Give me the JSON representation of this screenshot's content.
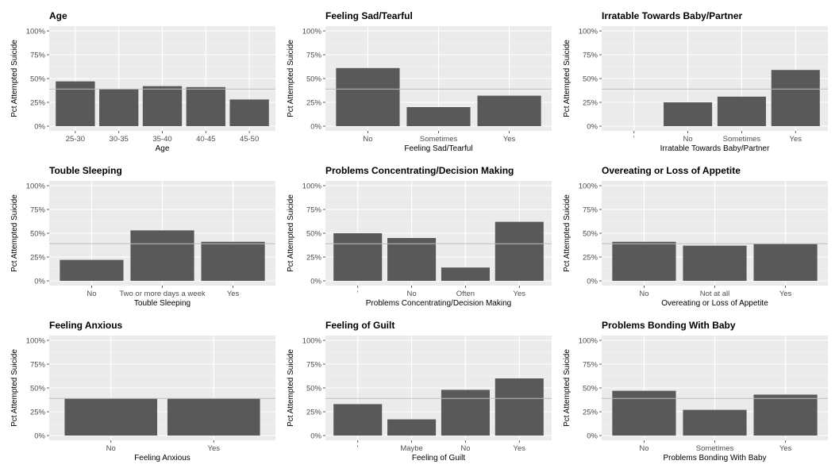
{
  "figure": {
    "ylabel": "Pct Attempted Suicide",
    "reference_line": 0.39
  },
  "chart_data": [
    {
      "type": "bar",
      "title": "Age",
      "xlabel": "Age",
      "ylabel": "Pct Attempted Suicide",
      "ylim": [
        0,
        1
      ],
      "yticks": [
        "0%",
        "25%",
        "50%",
        "75%",
        "100%"
      ],
      "grid": true,
      "categories": [
        "25-30",
        "30-35",
        "35-40",
        "40-45",
        "45-50"
      ],
      "values": [
        0.47,
        0.39,
        0.42,
        0.41,
        0.28
      ],
      "reference_line": 0.39,
      "bar_color": "#595959"
    },
    {
      "type": "bar",
      "title": "Feeling Sad/Tearful",
      "xlabel": "Feeling Sad/Tearful",
      "ylabel": "Pct Attempted Suicide",
      "ylim": [
        0,
        1
      ],
      "yticks": [
        "0%",
        "25%",
        "50%",
        "75%",
        "100%"
      ],
      "grid": true,
      "categories": [
        "No",
        "Sometimes",
        "Yes"
      ],
      "values": [
        0.61,
        0.2,
        0.32
      ],
      "reference_line": 0.39,
      "bar_color": "#595959"
    },
    {
      "type": "bar",
      "title": "Irratable Towards Baby/Partner",
      "xlabel": "Irratable Towards Baby/Partner",
      "ylabel": "Pct Attempted Suicide",
      "ylim": [
        0,
        1
      ],
      "yticks": [
        "0%",
        "25%",
        "50%",
        "75%",
        "100%"
      ],
      "grid": true,
      "categories": [
        "'",
        "No",
        "Sometimes",
        "Yes"
      ],
      "values": [
        0,
        0.25,
        0.31,
        0.59
      ],
      "reference_line": 0.39,
      "bar_color": "#595959"
    },
    {
      "type": "bar",
      "title": "Touble Sleeping",
      "xlabel": "Touble Sleeping",
      "ylabel": "Pct Attempted Suicide",
      "ylim": [
        0,
        1
      ],
      "yticks": [
        "0%",
        "25%",
        "50%",
        "75%",
        "100%"
      ],
      "grid": true,
      "categories": [
        "No",
        "Two or more days a week",
        "Yes"
      ],
      "values": [
        0.22,
        0.53,
        0.41
      ],
      "reference_line": 0.39,
      "bar_color": "#595959"
    },
    {
      "type": "bar",
      "title": "Problems Concentrating/Decision Making",
      "xlabel": "Problems Concentrating/Decision Making",
      "ylabel": "Pct Attempted Suicide",
      "ylim": [
        0,
        1
      ],
      "yticks": [
        "0%",
        "25%",
        "50%",
        "75%",
        "100%"
      ],
      "grid": true,
      "categories": [
        "'",
        "No",
        "Often",
        "Yes"
      ],
      "values": [
        0.5,
        0.45,
        0.14,
        0.62
      ],
      "reference_line": 0.39,
      "bar_color": "#595959"
    },
    {
      "type": "bar",
      "title": "Overeating or Loss of Appetite",
      "xlabel": "Overeating or Loss of Appetite",
      "ylabel": "Pct Attempted Suicide",
      "ylim": [
        0,
        1
      ],
      "yticks": [
        "0%",
        "25%",
        "50%",
        "75%",
        "100%"
      ],
      "grid": true,
      "categories": [
        "No",
        "Not at all",
        "Yes"
      ],
      "values": [
        0.41,
        0.37,
        0.39
      ],
      "reference_line": 0.39,
      "bar_color": "#595959"
    },
    {
      "type": "bar",
      "title": "Feeling Anxious",
      "xlabel": "Feeling Anxious",
      "ylabel": "Pct Attempted Suicide",
      "ylim": [
        0,
        1
      ],
      "yticks": [
        "0%",
        "25%",
        "50%",
        "75%",
        "100%"
      ],
      "grid": true,
      "categories": [
        "No",
        "Yes"
      ],
      "values": [
        0.39,
        0.39
      ],
      "reference_line": 0.39,
      "bar_color": "#595959"
    },
    {
      "type": "bar",
      "title": "Feeling of Guilt",
      "xlabel": "Feeling of Guilt",
      "ylabel": "Pct Attempted Suicide",
      "ylim": [
        0,
        1
      ],
      "yticks": [
        "0%",
        "25%",
        "50%",
        "75%",
        "100%"
      ],
      "grid": true,
      "categories": [
        "'",
        "Maybe",
        "No",
        "Yes"
      ],
      "values": [
        0.33,
        0.17,
        0.48,
        0.6
      ],
      "reference_line": 0.39,
      "bar_color": "#595959"
    },
    {
      "type": "bar",
      "title": "Problems Bonding With Baby",
      "xlabel": "Problems Bonding With Baby",
      "ylabel": "Pct Attempted Suicide",
      "ylim": [
        0,
        1
      ],
      "yticks": [
        "0%",
        "25%",
        "50%",
        "75%",
        "100%"
      ],
      "grid": true,
      "categories": [
        "No",
        "Sometimes",
        "Yes"
      ],
      "values": [
        0.47,
        0.27,
        0.43
      ],
      "reference_line": 0.39,
      "bar_color": "#595959"
    }
  ]
}
